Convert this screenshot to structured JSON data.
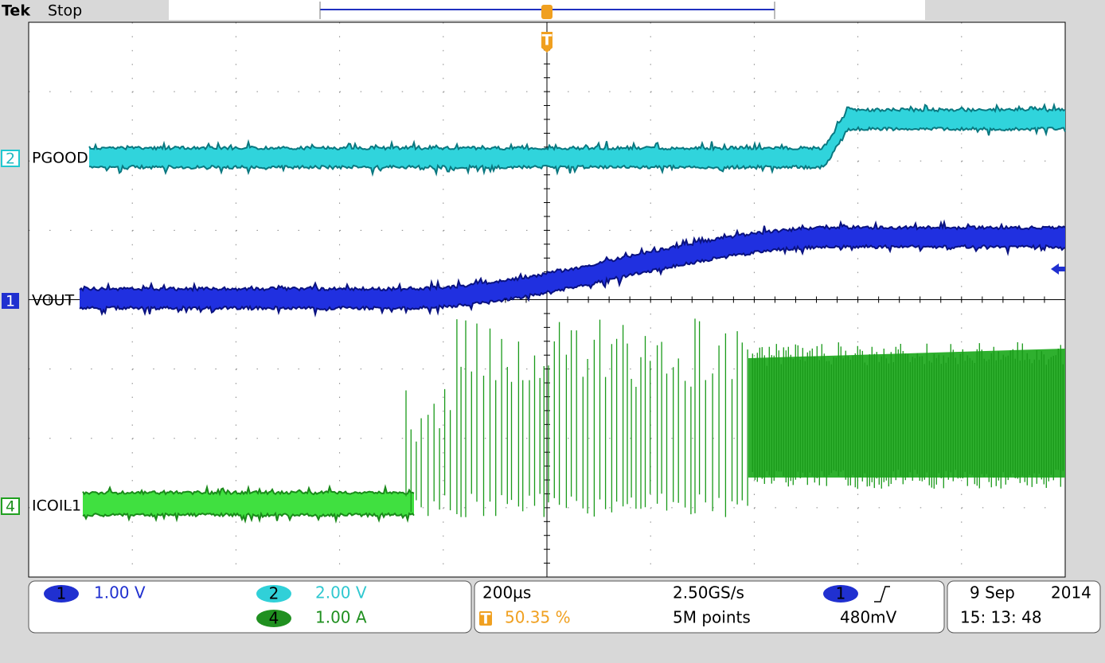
{
  "header": {
    "brand": "Tek",
    "status": "Stop"
  },
  "trigger_marker": "T",
  "channels": [
    {
      "number": "2",
      "label": "PGOOD"
    },
    {
      "number": "1",
      "label": "VOUT"
    },
    {
      "number": "4",
      "label": "ICOIL1"
    }
  ],
  "readouts": {
    "ch1": {
      "number": "1",
      "scale": "1.00 V"
    },
    "ch2": {
      "number": "2",
      "scale": "2.00 V"
    },
    "ch4": {
      "number": "4",
      "scale": "1.00 A"
    },
    "timebase": "200µs",
    "sample_rate": "2.50GS/s",
    "trigger_position_icon": "T",
    "trigger_position": "50.35 %",
    "record_length": "5M points",
    "trigger_source": "1",
    "trigger_level": "480mV",
    "date": "9 Sep",
    "year": "2014",
    "time": "15: 13: 48"
  }
}
